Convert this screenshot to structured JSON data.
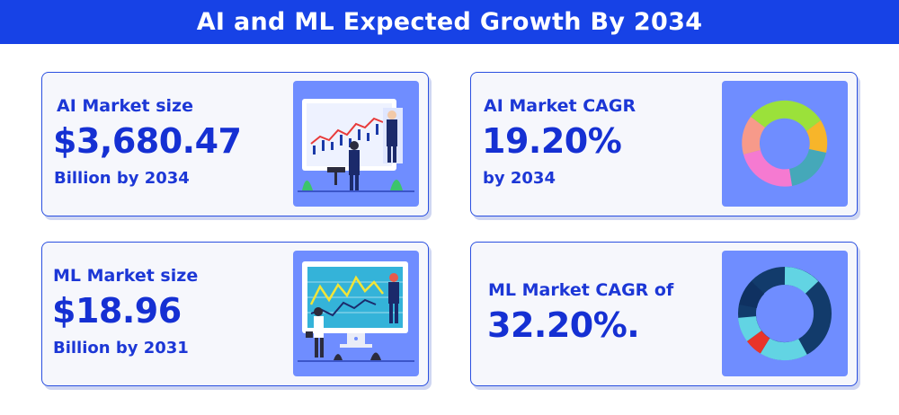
{
  "header": {
    "title": "AI and ML Expected Growth By 2034"
  },
  "cards": {
    "ai_size": {
      "label": "AI Market size",
      "value": "$3,680.47",
      "sub": "Billion by 2034"
    },
    "ai_cagr": {
      "label": "AI Market CAGR",
      "value": "19.20%",
      "sub": "by 2034"
    },
    "ml_size": {
      "label": "ML Market size",
      "value": "$18.96",
      "sub": "Billion by 2031"
    },
    "ml_cagr": {
      "label": "ML Market CAGR of",
      "value": "32.20%."
    }
  },
  "colors": {
    "brand_blue": "#1742e6",
    "text_blue": "#1530d3",
    "illustration_bg": "#6f8dff",
    "card_bg": "#f6f7fc"
  },
  "icons": {
    "ai_size": "presentation-trading-chart-illustration",
    "ai_cagr": "donut-chart-icon",
    "ml_size": "analytics-screen-illustration",
    "ml_cagr": "ring-chart-icon"
  }
}
